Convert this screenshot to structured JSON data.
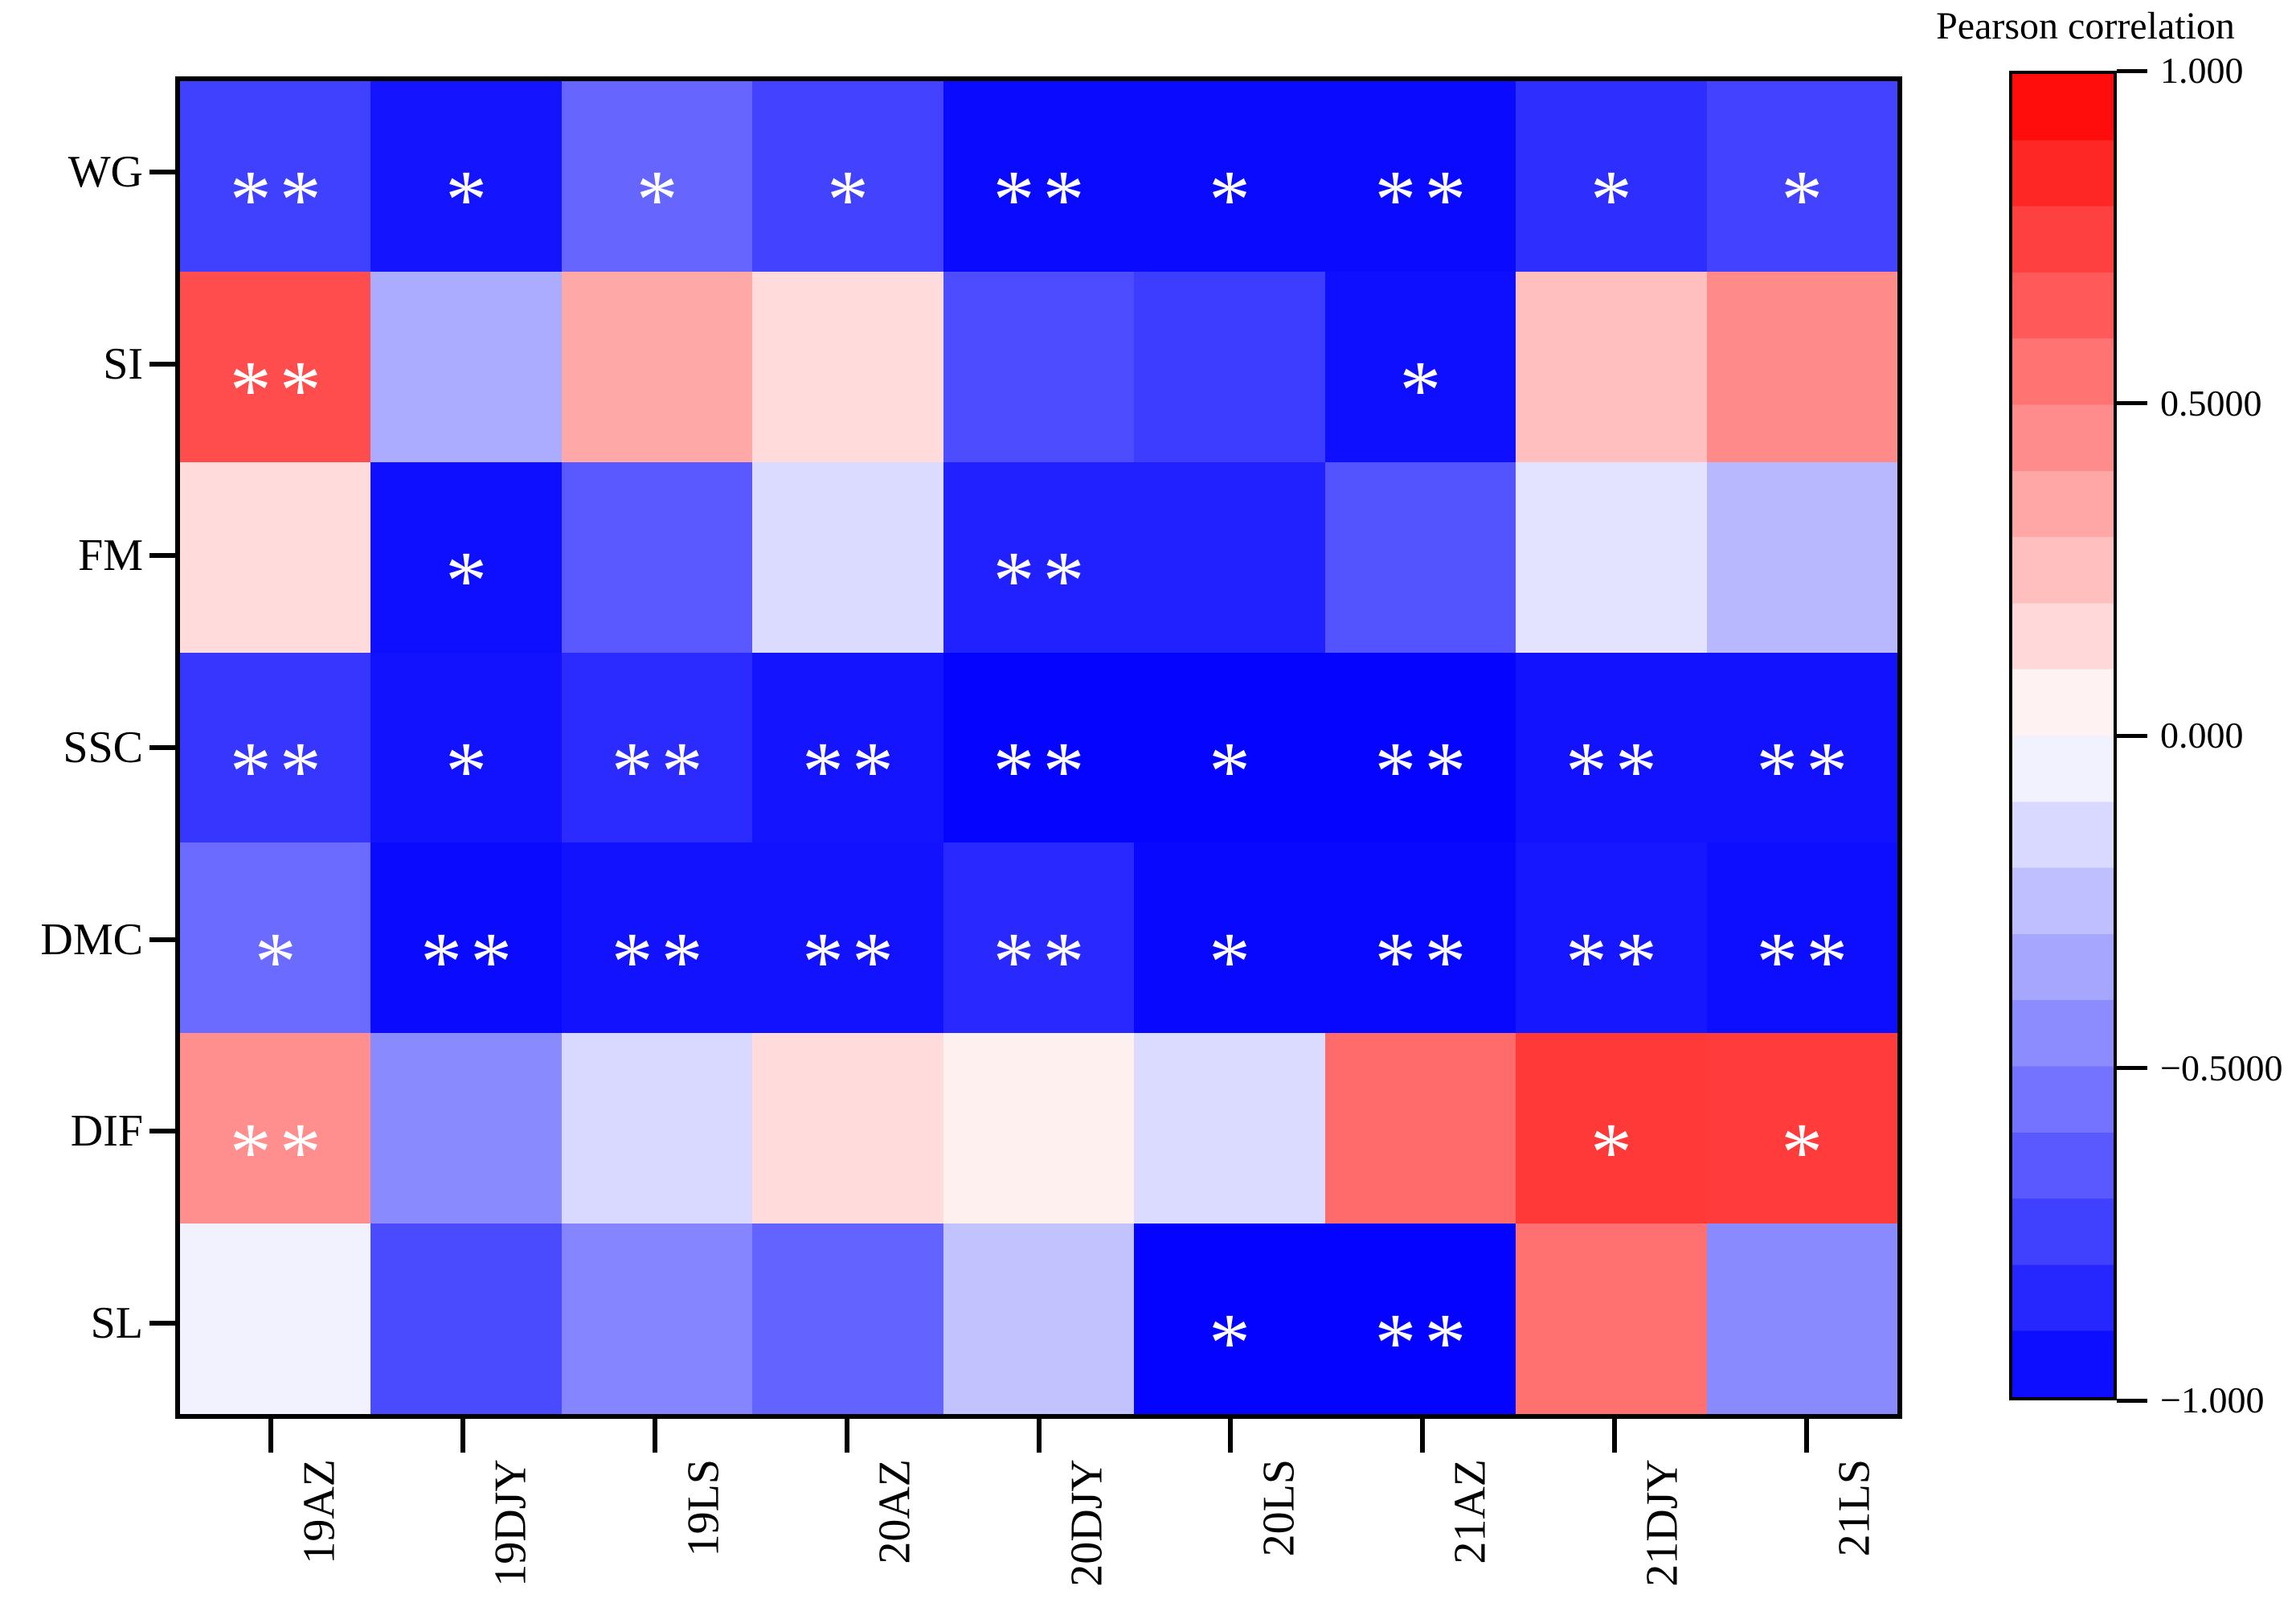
{
  "figure": {
    "background": "#FFFFFF",
    "border_color": "#000000",
    "annotation_color": "#FFFFFF"
  },
  "colorbar": {
    "title": "Pearson correlation",
    "tick_labels": [
      "1.000",
      "0.5000",
      "0.000",
      "−0.5000",
      "−1.000"
    ],
    "tick_values": [
      1.0,
      0.5,
      0.0,
      -0.5,
      -1.0
    ],
    "range": [
      -1.0,
      1.0
    ],
    "levels": 20,
    "max_color": "#FF0000",
    "mid_color": "#FFFFFF",
    "min_color": "#0000FF",
    "position": "right"
  },
  "chart_data": {
    "type": "heatmap",
    "title": "Pearson correlation",
    "colormap": "blue-white-red",
    "color_range": [
      -1.0,
      1.0
    ],
    "grid": false,
    "legend_position": "right",
    "x_categories": [
      "19AZ",
      "19DJY",
      "19LS",
      "20AZ",
      "20DJY",
      "20LS",
      "21AZ",
      "21DJY",
      "21LS"
    ],
    "y_categories": [
      "WG",
      "SI",
      "FM",
      "SSC",
      "DMC",
      "DIF",
      "SL"
    ],
    "values": [
      [
        -0.75,
        -0.92,
        -0.6,
        -0.74,
        -0.96,
        -0.96,
        -0.96,
        -0.82,
        -0.74
      ],
      [
        0.7,
        -0.33,
        0.34,
        0.14,
        -0.7,
        -0.76,
        -0.94,
        0.25,
        0.46
      ],
      [
        0.14,
        -0.94,
        -0.65,
        -0.14,
        -0.87,
        -0.87,
        -0.67,
        -0.11,
        -0.28
      ],
      [
        -0.79,
        -0.93,
        -0.83,
        -0.92,
        -0.98,
        -0.98,
        -0.98,
        -0.93,
        -0.93
      ],
      [
        -0.58,
        -0.96,
        -0.93,
        -0.93,
        -0.84,
        -0.97,
        -0.97,
        -0.91,
        -0.95
      ],
      [
        0.44,
        -0.46,
        -0.15,
        0.14,
        0.06,
        -0.14,
        0.58,
        0.78,
        0.77
      ],
      [
        -0.05,
        -0.71,
        -0.48,
        -0.61,
        -0.24,
        -0.99,
        -0.99,
        0.56,
        -0.46
      ]
    ],
    "annotations": [
      [
        "**",
        "*",
        "*",
        "*",
        "**",
        "*",
        "**",
        "*",
        "*"
      ],
      [
        "**",
        "",
        "",
        "",
        "",
        "",
        "*",
        "",
        ""
      ],
      [
        "",
        "*",
        "",
        "",
        "**",
        "",
        "",
        "",
        ""
      ],
      [
        "**",
        "*",
        "**",
        "**",
        "**",
        "*",
        "**",
        "**",
        "**"
      ],
      [
        "*",
        "**",
        "**",
        "**",
        "**",
        "*",
        "**",
        "**",
        "**"
      ],
      [
        "**",
        "",
        "",
        "",
        "",
        "",
        "",
        "*",
        "*"
      ],
      [
        "",
        "",
        "",
        "",
        "",
        "*",
        "**",
        "",
        ""
      ]
    ]
  }
}
